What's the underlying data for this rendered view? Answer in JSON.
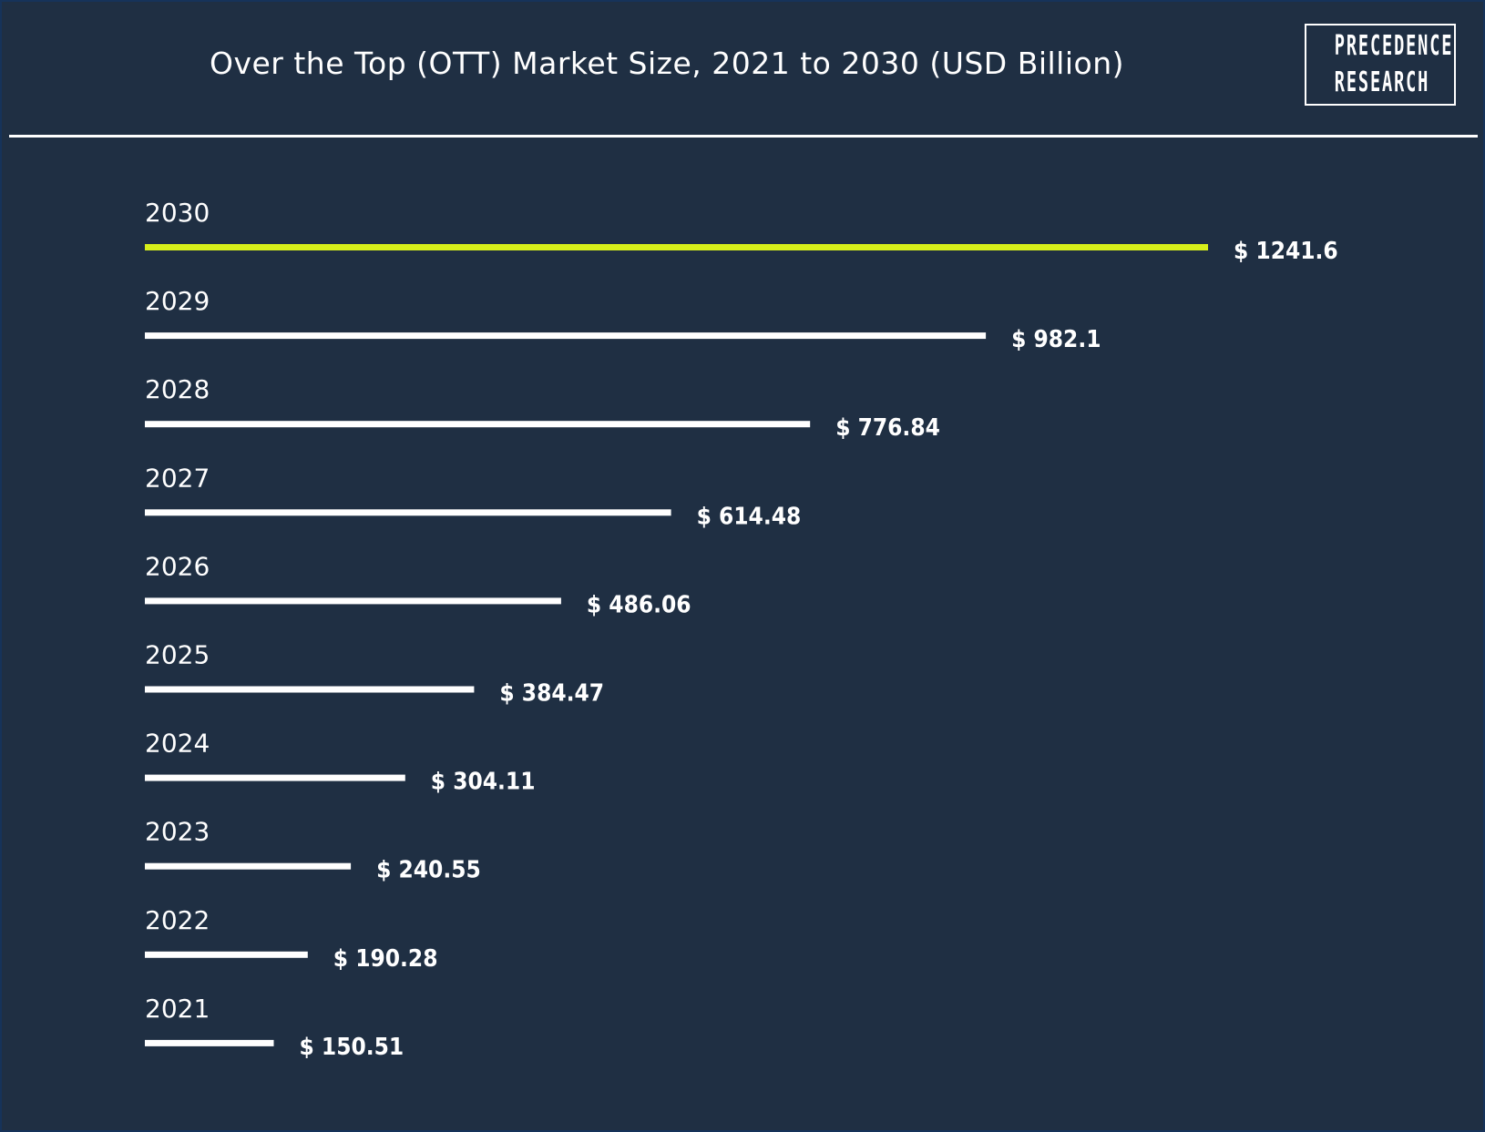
{
  "header": {
    "title": "Over the Top (OTT) Market Size, 2021 to 2030 (USD Billion)",
    "logo_line1": "PRECEDENCE",
    "logo_line2": "RESEARCH"
  },
  "colors": {
    "background": "#1f2f43",
    "bar": "#ffffff",
    "highlight": "#d7ef1a",
    "text": "#ffffff"
  },
  "chart_data": {
    "type": "bar",
    "orientation": "horizontal",
    "title": "Over the Top (OTT) Market Size, 2021 to 2030 (USD Billion)",
    "categories": [
      "2030",
      "2029",
      "2028",
      "2027",
      "2026",
      "2025",
      "2024",
      "2023",
      "2022",
      "2021"
    ],
    "values": [
      1241.6,
      982.1,
      776.84,
      614.48,
      486.06,
      384.47,
      304.11,
      240.55,
      190.28,
      150.51
    ],
    "value_labels": [
      "$ 1241.6",
      "$ 982.1",
      "$ 776.84",
      "$ 614.48",
      "$ 486.06",
      "$ 384.47",
      "$ 304.11",
      "$ 240.55",
      "$ 190.28",
      "$ 150.51"
    ],
    "highlight_category": "2030",
    "xlabel": "",
    "ylabel": "",
    "grid": false,
    "legend": "none"
  }
}
